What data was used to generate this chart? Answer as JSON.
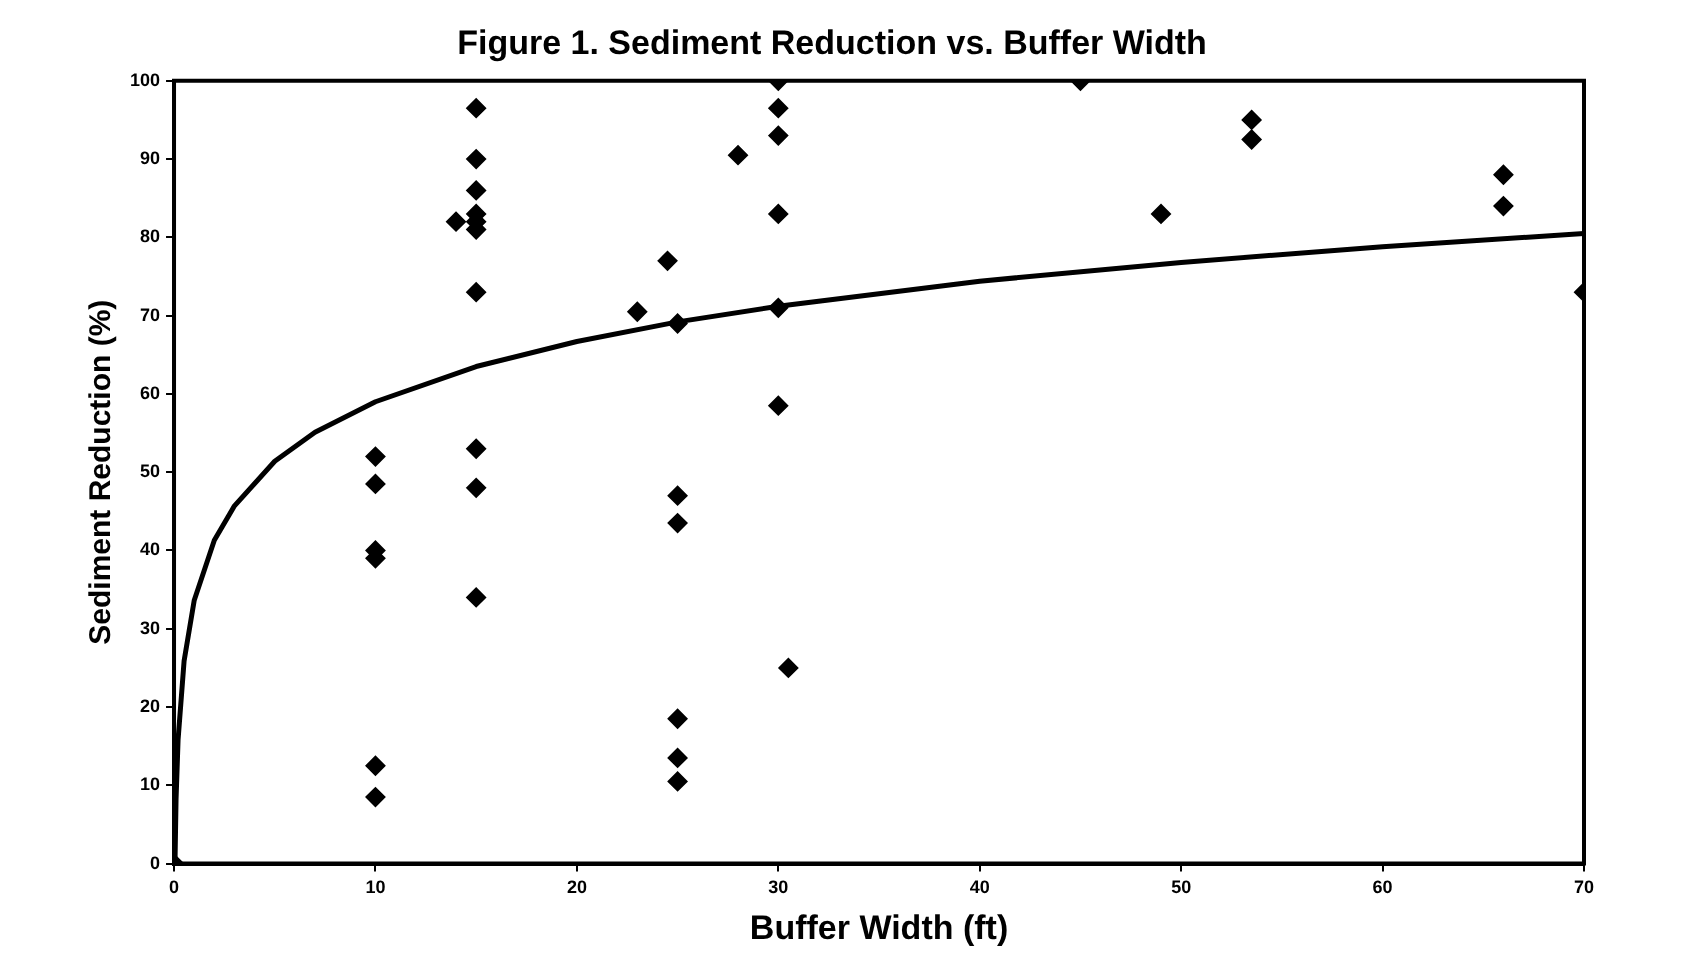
{
  "chart_data": {
    "type": "scatter",
    "title": "Figure 1. Sediment Reduction vs. Buffer Width",
    "xlabel": "Buffer Width (ft)",
    "ylabel": "Sediment Reduction (%)",
    "xlim": [
      0,
      70
    ],
    "xticks": [
      0,
      10,
      20,
      30,
      40,
      50,
      60,
      70
    ],
    "ylim": [
      0,
      100
    ],
    "yticks": [
      0,
      10,
      20,
      30,
      40,
      50,
      60,
      70,
      80,
      90,
      100
    ],
    "grid": false,
    "legend": false,
    "marker": "diamond",
    "series": [
      {
        "type": "scatter",
        "color": "#000000",
        "x": [
          0,
          10,
          10,
          10,
          10,
          10,
          10,
          14,
          15,
          15,
          15,
          15,
          15,
          15,
          15,
          15,
          15,
          15,
          23,
          24.5,
          25,
          25,
          25,
          25,
          25,
          25,
          28,
          30,
          30,
          30,
          30,
          30,
          30,
          30.5,
          45,
          49,
          53.5,
          53.5,
          66,
          66,
          70
        ],
        "values": [
          0,
          52,
          48.5,
          40,
          39,
          12.5,
          8.5,
          82,
          96.5,
          90,
          86,
          83,
          82,
          81,
          73,
          53,
          48,
          34,
          70.5,
          77,
          69,
          47,
          43.5,
          18.5,
          13.5,
          10.5,
          90.5,
          100,
          96.5,
          93,
          83,
          71,
          58.5,
          25,
          100,
          83,
          95,
          92.5,
          88,
          84,
          73
        ]
      },
      {
        "type": "line",
        "color": "#000000",
        "marker": "none",
        "line_style": "solid",
        "x": [
          0.05,
          0.1,
          0.2,
          0.5,
          1,
          2,
          3,
          5,
          7,
          10,
          15,
          20,
          25,
          30,
          40,
          50,
          60,
          70
        ],
        "values": [
          0.5,
          8.2,
          15.8,
          25.9,
          33.6,
          41.3,
          45.7,
          51.4,
          55.1,
          59.0,
          63.5,
          66.7,
          69.2,
          71.2,
          74.4,
          76.8,
          78.8,
          80.5
        ]
      }
    ]
  }
}
